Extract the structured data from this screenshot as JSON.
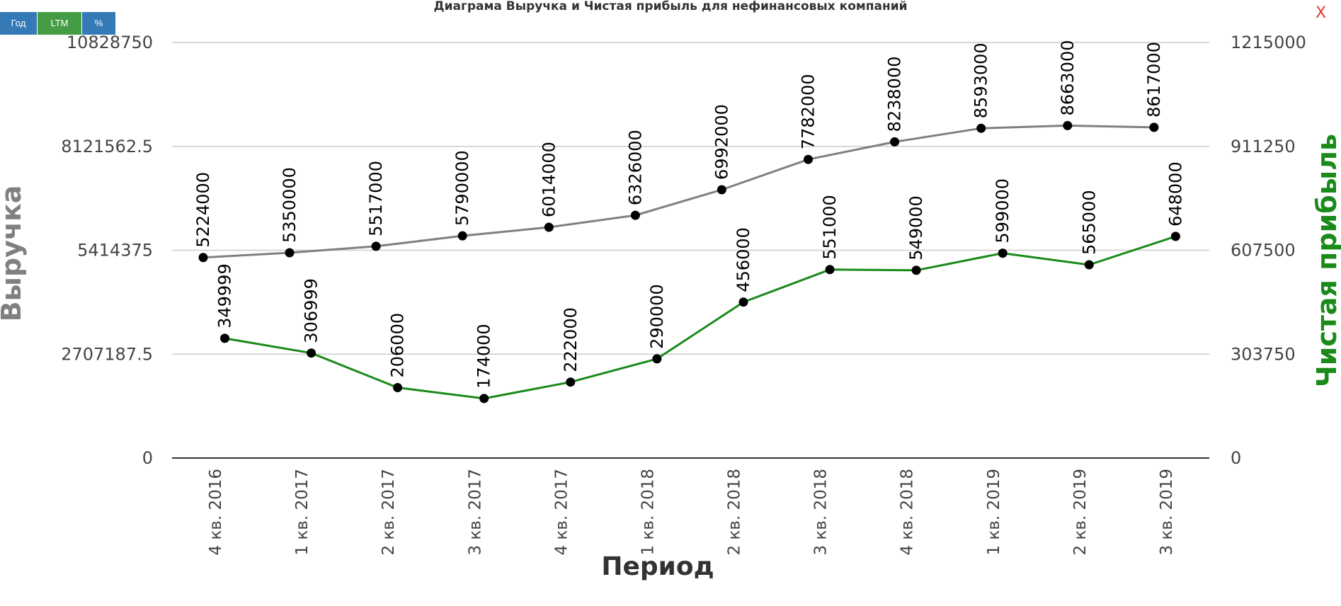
{
  "chart_title": "Диаграма Выручка и Чистая прибыль для нефинансовых компаний",
  "toolbar": {
    "year_label": "Год",
    "ltm_label": "LTM",
    "percent_label": "%",
    "close_label": "X"
  },
  "colors": {
    "revenue": "#808080",
    "net_profit": "#1a8a1a",
    "grid": "#cccccc",
    "year_button": "#337ab7",
    "ltm_button": "#449d44",
    "close": "#e53935"
  },
  "chart_data": {
    "type": "line",
    "title": "Диаграма Выручка и Чистая прибыль для нефинансовых компаний",
    "xlabel": "Период",
    "ylabel_left": "Выручка",
    "ylabel_right": "Чистая прибыль",
    "categories": [
      "4 кв. 2016",
      "1 кв. 2017",
      "2 кв. 2017",
      "3 кв. 2017",
      "4 кв. 2017",
      "1 кв. 2018",
      "2 кв. 2018",
      "3 кв. 2018",
      "4 кв. 2018",
      "1 кв. 2019",
      "2 кв. 2019",
      "3 кв. 2019"
    ],
    "y_left": {
      "lim": [
        0,
        10828750
      ],
      "ticks": [
        "0",
        "2707187.5",
        "5414375",
        "8121562.5",
        "10828750"
      ]
    },
    "y_right": {
      "lim": [
        0,
        1215000
      ],
      "ticks": [
        "0",
        "303750",
        "607500",
        "911250",
        "1215000"
      ]
    },
    "grid": true,
    "series": [
      {
        "axis": "left",
        "color": "#808080",
        "values": [
          5224000,
          5350000,
          5517000,
          5790000,
          6014000,
          6326000,
          6992000,
          7782000,
          8238000,
          8593000,
          8663000,
          8617000
        ]
      },
      {
        "axis": "right",
        "color": "#1a8a1a",
        "values": [
          349999,
          306999,
          206000,
          174000,
          222000,
          290000,
          456000,
          551000,
          549000,
          599000,
          565000,
          648000
        ]
      }
    ]
  }
}
